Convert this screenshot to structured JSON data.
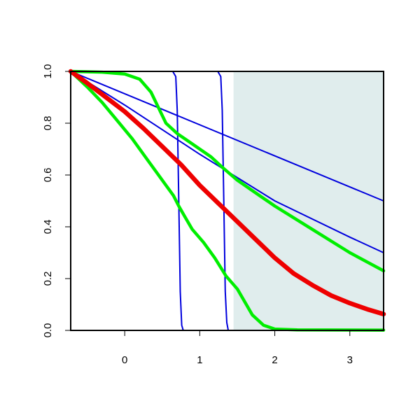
{
  "chart_data": {
    "type": "line",
    "title": "",
    "xlabel": "",
    "ylabel": "",
    "xlim": [
      -0.72,
      3.45
    ],
    "ylim": [
      0,
      1
    ],
    "grid": false,
    "x_ticks": [
      0,
      1,
      2,
      3
    ],
    "x_tick_labels": [
      "0",
      "1",
      "2",
      "3"
    ],
    "y_ticks": [
      0,
      0.2,
      0.4,
      0.6,
      0.8,
      1
    ],
    "y_tick_labels": [
      "0.0",
      "0.2",
      "0.4",
      "0.6",
      "0.8",
      "1.0"
    ],
    "shaded_region": {
      "x_from": 1.45,
      "x_to": 3.45,
      "color": "#e0eded"
    },
    "colors": {
      "blue": "#0000dd",
      "red": "#ee0000",
      "green": "#00ee00",
      "axis": "#000000"
    },
    "series": [
      {
        "color": "#0000dd",
        "width": "thin",
        "points": [
          [
            -0.72,
            1.0
          ],
          [
            3.45,
            0.5
          ]
        ]
      },
      {
        "color": "#0000dd",
        "width": "thin",
        "points": [
          [
            -0.72,
            1.0
          ],
          [
            0,
            0.87
          ],
          [
            1,
            0.68
          ],
          [
            2,
            0.5
          ],
          [
            3,
            0.36
          ],
          [
            3.45,
            0.3
          ]
        ]
      },
      {
        "color": "#0000dd",
        "width": "thin",
        "points": [
          [
            -0.72,
            1.0
          ],
          [
            0.64,
            1.0
          ],
          [
            0.68,
            0.98
          ],
          [
            0.7,
            0.85
          ],
          [
            0.72,
            0.5
          ],
          [
            0.74,
            0.15
          ],
          [
            0.76,
            0.02
          ],
          [
            0.78,
            0.0
          ],
          [
            3.45,
            0.0
          ]
        ]
      },
      {
        "color": "#0000dd",
        "width": "thin",
        "points": [
          [
            -0.72,
            1.0
          ],
          [
            1.24,
            1.0
          ],
          [
            1.28,
            0.98
          ],
          [
            1.3,
            0.85
          ],
          [
            1.32,
            0.5
          ],
          [
            1.34,
            0.15
          ],
          [
            1.36,
            0.03
          ],
          [
            1.38,
            0.0
          ],
          [
            3.45,
            0.0
          ]
        ]
      },
      {
        "color": "#00ee00",
        "width": "medium",
        "points": [
          [
            -0.72,
            1.0
          ],
          [
            -0.3,
            0.997
          ],
          [
            0,
            0.99
          ],
          [
            0.2,
            0.97
          ],
          [
            0.35,
            0.92
          ],
          [
            0.45,
            0.86
          ],
          [
            0.55,
            0.8
          ],
          [
            0.7,
            0.76
          ],
          [
            0.85,
            0.73
          ],
          [
            1.0,
            0.7
          ],
          [
            1.15,
            0.67
          ],
          [
            1.3,
            0.63
          ],
          [
            1.5,
            0.58
          ],
          [
            1.8,
            0.52
          ],
          [
            2.0,
            0.48
          ],
          [
            2.5,
            0.39
          ],
          [
            3.0,
            0.3
          ],
          [
            3.45,
            0.23
          ]
        ]
      },
      {
        "color": "#00ee00",
        "width": "medium",
        "points": [
          [
            -0.72,
            1.0
          ],
          [
            -0.5,
            0.94
          ],
          [
            -0.3,
            0.88
          ],
          [
            -0.1,
            0.81
          ],
          [
            0.1,
            0.74
          ],
          [
            0.3,
            0.66
          ],
          [
            0.5,
            0.58
          ],
          [
            0.65,
            0.52
          ],
          [
            0.72,
            0.48
          ],
          [
            0.8,
            0.44
          ],
          [
            0.9,
            0.39
          ],
          [
            1.05,
            0.34
          ],
          [
            1.2,
            0.28
          ],
          [
            1.35,
            0.21
          ],
          [
            1.5,
            0.16
          ],
          [
            1.6,
            0.11
          ],
          [
            1.7,
            0.06
          ],
          [
            1.85,
            0.02
          ],
          [
            2.0,
            0.005
          ],
          [
            2.3,
            0.002
          ],
          [
            3.45,
            0.001
          ]
        ]
      },
      {
        "color": "#ee0000",
        "width": "thick",
        "points": [
          [
            -0.72,
            1.0
          ],
          [
            -0.5,
            0.955
          ],
          [
            -0.25,
            0.9
          ],
          [
            0,
            0.845
          ],
          [
            0.25,
            0.78
          ],
          [
            0.5,
            0.71
          ],
          [
            0.75,
            0.64
          ],
          [
            1.0,
            0.56
          ],
          [
            1.25,
            0.49
          ],
          [
            1.5,
            0.42
          ],
          [
            1.75,
            0.35
          ],
          [
            2.0,
            0.28
          ],
          [
            2.25,
            0.22
          ],
          [
            2.5,
            0.175
          ],
          [
            2.75,
            0.135
          ],
          [
            3.0,
            0.105
          ],
          [
            3.25,
            0.08
          ],
          [
            3.45,
            0.063
          ]
        ]
      }
    ]
  }
}
